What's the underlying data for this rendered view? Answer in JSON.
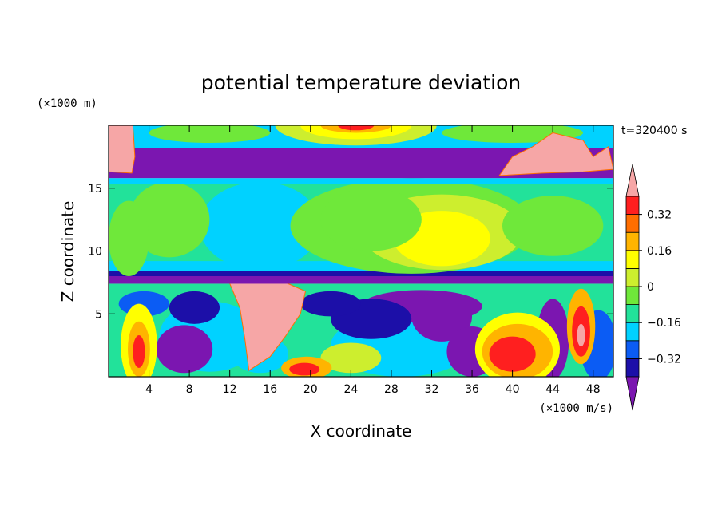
{
  "chart_data": {
    "type": "heatmap",
    "title": "potential temperature deviation",
    "xlabel": "X coordinate",
    "ylabel": "Z coordinate",
    "x_unit": "(×1000 m/s)",
    "y_unit": "(×1000 m)",
    "time_label": "t=320400 s",
    "xlim": [
      0,
      50
    ],
    "ylim": [
      0,
      20
    ],
    "x_ticks": [
      4,
      8,
      12,
      16,
      20,
      24,
      28,
      32,
      36,
      40,
      44,
      48
    ],
    "x_tick_labels": [
      "4",
      "8",
      "12",
      "16",
      "20",
      "24",
      "28",
      "32",
      "36",
      "40",
      "44",
      "48"
    ],
    "y_ticks": [
      5,
      10,
      15
    ],
    "y_tick_labels": [
      "5",
      "10",
      "15"
    ],
    "colorbar": {
      "levels": [
        -0.4,
        -0.32,
        -0.24,
        -0.16,
        -0.08,
        0,
        0.08,
        0.16,
        0.24,
        0.32,
        0.4
      ],
      "labels": [
        "0.32",
        "0.16",
        "0",
        "−0.16",
        "−0.32"
      ],
      "label_values": [
        0.32,
        0.16,
        0,
        -0.16,
        -0.32
      ],
      "colors": [
        "#7b16b0",
        "#1c0fa8",
        "#0b5cf4",
        "#00d2ff",
        "#22e29a",
        "#6fe83a",
        "#cdee2e",
        "#ffff00",
        "#ffb400",
        "#ff6e00",
        "#ff1f1f",
        "#f6a6a6"
      ]
    },
    "bands": [
      {
        "z": [
          0,
          7
        ],
        "description_level": "mixed"
      },
      {
        "z": [
          7,
          8
        ],
        "level": -0.36
      },
      {
        "z": [
          8,
          16
        ],
        "level": 0.08
      },
      {
        "z": [
          16,
          18
        ],
        "level": -0.36
      },
      {
        "z": [
          18,
          20
        ],
        "level": 0.2
      }
    ]
  }
}
